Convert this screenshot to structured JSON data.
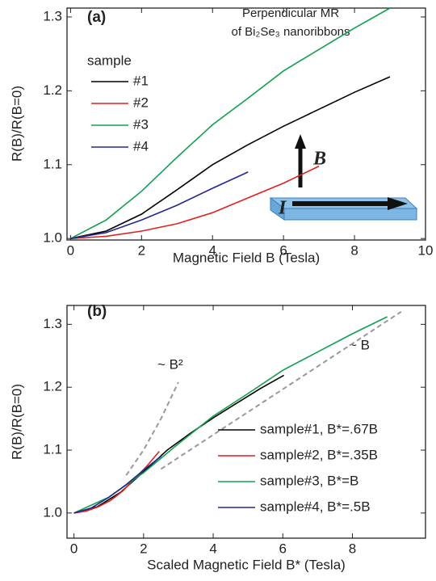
{
  "chart_data": [
    {
      "type": "line",
      "panel_label": "(a)",
      "title": "Perpendicular MR",
      "subtitle": "of Bi₂Se₃ nanoribbons",
      "x_label": "Magnetic Field B (Tesla)",
      "y_label": "R(B)/R(B=0)",
      "xlim": [
        -0.1,
        10
      ],
      "ylim": [
        0.998,
        1.312
      ],
      "xticks": [
        0,
        2,
        4,
        6,
        8,
        10
      ],
      "yticks": [
        {
          "value": 1,
          "label": "1.0"
        },
        1.1,
        1.2,
        1.3
      ],
      "legend": "upper left",
      "legend_title": "sample",
      "illustration": {
        "field": "B",
        "current": "I"
      },
      "series": [
        {
          "name": "#1",
          "color": "#000000",
          "x": [
            0,
            1,
            2,
            3,
            4,
            5,
            6,
            7,
            8,
            9
          ],
          "values": [
            1.0,
            1.01,
            1.033,
            1.066,
            1.1,
            1.127,
            1.152,
            1.175,
            1.198,
            1.219
          ]
        },
        {
          "name": "#2",
          "color": "#e02020",
          "x": [
            0,
            1,
            2,
            3,
            4,
            5,
            6,
            7
          ],
          "values": [
            1.0,
            1.003,
            1.01,
            1.02,
            1.035,
            1.055,
            1.075,
            1.098
          ]
        },
        {
          "name": "#3",
          "color": "#10a050",
          "x": [
            0,
            1,
            2,
            3,
            4,
            5,
            6,
            7,
            8,
            9
          ],
          "values": [
            1.0,
            1.025,
            1.064,
            1.11,
            1.154,
            1.19,
            1.227,
            1.256,
            1.285,
            1.312
          ]
        },
        {
          "name": "#4",
          "color": "#202890",
          "x": [
            0,
            1,
            2,
            3,
            4,
            5
          ],
          "values": [
            1.0,
            1.008,
            1.025,
            1.045,
            1.068,
            1.09
          ]
        }
      ]
    },
    {
      "type": "line",
      "panel_label": "(b)",
      "x_label": "Scaled Magnetic Field B* (Tesla)",
      "y_label": "R(B)/R(B=0)",
      "xlim": [
        -0.2,
        10.1
      ],
      "ylim": [
        0.96,
        1.33
      ],
      "xticks": [
        0,
        2,
        4,
        6,
        8
      ],
      "yticks": [
        {
          "value": 1,
          "label": "1.0"
        },
        1.1,
        1.2,
        1.3
      ],
      "legend": "lower right",
      "reference_lines": [
        {
          "label": "~ B²",
          "x": [
            1.5,
            2,
            2.5,
            3
          ],
          "values": [
            1.06,
            1.1,
            1.15,
            1.208
          ]
        },
        {
          "label": "~ B",
          "x": [
            2.5,
            9.4
          ],
          "values": [
            1.07,
            1.32
          ]
        }
      ],
      "series": [
        {
          "name": "sample#1, B*=.67B",
          "color": "#000000",
          "x": [
            0,
            0.67,
            1.34,
            2.01,
            2.68,
            3.35,
            4.02,
            4.69,
            5.36,
            6.03
          ],
          "values": [
            1.0,
            1.01,
            1.033,
            1.066,
            1.1,
            1.127,
            1.152,
            1.175,
            1.198,
            1.219
          ]
        },
        {
          "name": "sample#2, B*=.35B",
          "color": "#e02020",
          "x": [
            0,
            0.35,
            0.7,
            1.05,
            1.4,
            1.75,
            2.1,
            2.45
          ],
          "values": [
            1.0,
            1.003,
            1.01,
            1.02,
            1.035,
            1.055,
            1.075,
            1.098
          ]
        },
        {
          "name": "sample#3, B*=B",
          "color": "#10a050",
          "x": [
            0,
            1,
            2,
            3,
            4,
            5,
            6,
            7,
            8,
            9
          ],
          "values": [
            1.0,
            1.025,
            1.064,
            1.11,
            1.154,
            1.19,
            1.227,
            1.256,
            1.285,
            1.312
          ]
        },
        {
          "name": "sample#4, B*=.5B",
          "color": "#202890",
          "x": [
            0,
            0.5,
            1,
            1.5,
            2,
            2.5
          ],
          "values": [
            1.0,
            1.008,
            1.025,
            1.045,
            1.068,
            1.09
          ]
        }
      ]
    }
  ]
}
